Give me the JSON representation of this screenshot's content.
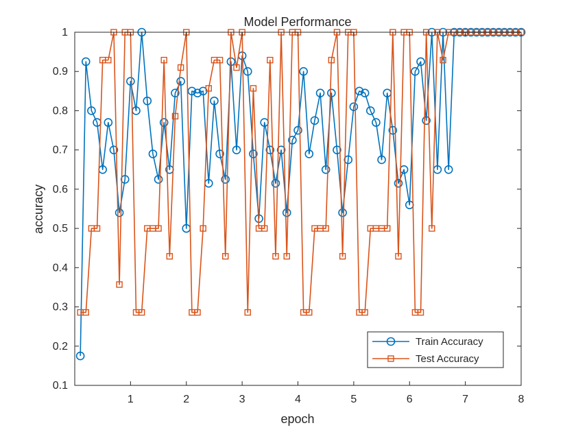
{
  "chart_data": {
    "type": "line",
    "title": "Model Performance",
    "xlabel": "epoch",
    "ylabel": "accuracy",
    "xlim": [
      0,
      8
    ],
    "ylim": [
      0.1,
      1
    ],
    "xticks": [
      1,
      2,
      3,
      4,
      5,
      6,
      7,
      8
    ],
    "yticks": [
      0.1,
      0.2,
      0.3,
      0.4,
      0.5,
      0.6,
      0.7,
      0.8,
      0.9,
      1
    ],
    "grid": false,
    "legend_position": "bottom-right",
    "series": [
      {
        "name": "Train Accuracy",
        "color": "#0072BD",
        "marker": "circle",
        "x": [
          0.1,
          0.2,
          0.3,
          0.4,
          0.5,
          0.6,
          0.7,
          0.8,
          0.9,
          1.0,
          1.1,
          1.2,
          1.3,
          1.4,
          1.5,
          1.6,
          1.7,
          1.8,
          1.9,
          2.0,
          2.1,
          2.2,
          2.3,
          2.4,
          2.5,
          2.6,
          2.7,
          2.8,
          2.9,
          3.0,
          3.1,
          3.2,
          3.3,
          3.4,
          3.5,
          3.6,
          3.7,
          3.8,
          3.9,
          4.0,
          4.1,
          4.2,
          4.3,
          4.4,
          4.5,
          4.6,
          4.7,
          4.8,
          4.9,
          5.0,
          5.1,
          5.2,
          5.3,
          5.4,
          5.5,
          5.6,
          5.7,
          5.8,
          5.9,
          6.0,
          6.1,
          6.2,
          6.3,
          6.4,
          6.5,
          6.6,
          6.7,
          6.8,
          6.9,
          7.0,
          7.1,
          7.2,
          7.3,
          7.4,
          7.5,
          7.6,
          7.7,
          7.8,
          7.9,
          8.0
        ],
        "y": [
          0.175,
          0.925,
          0.8,
          0.77,
          0.65,
          0.77,
          0.7,
          0.54,
          0.625,
          0.875,
          0.8,
          1.0,
          0.825,
          0.69,
          0.625,
          0.77,
          0.65,
          0.845,
          0.875,
          0.5,
          0.85,
          0.845,
          0.85,
          0.615,
          0.825,
          0.69,
          0.625,
          0.925,
          0.7,
          0.94,
          0.9,
          0.69,
          0.525,
          0.77,
          0.7,
          0.615,
          0.7,
          0.54,
          0.725,
          0.75,
          0.9,
          0.69,
          0.775,
          0.845,
          0.65,
          0.845,
          0.7,
          0.54,
          0.675,
          0.81,
          0.85,
          0.845,
          0.8,
          0.77,
          0.675,
          0.845,
          0.75,
          0.615,
          0.65,
          0.56,
          0.9,
          0.925,
          0.775,
          1.0,
          0.65,
          1.0,
          0.65,
          1.0,
          1.0,
          1.0,
          1.0,
          1.0,
          1.0,
          1.0,
          1.0,
          1.0,
          1.0,
          1.0,
          1.0,
          1.0
        ]
      },
      {
        "name": "Test Accuracy",
        "color": "#D95319",
        "marker": "square",
        "x": [
          0.1,
          0.2,
          0.3,
          0.4,
          0.5,
          0.6,
          0.7,
          0.8,
          0.9,
          1.0,
          1.1,
          1.2,
          1.3,
          1.4,
          1.5,
          1.6,
          1.7,
          1.8,
          1.9,
          2.0,
          2.1,
          2.2,
          2.3,
          2.4,
          2.5,
          2.6,
          2.7,
          2.8,
          2.9,
          3.0,
          3.1,
          3.2,
          3.3,
          3.4,
          3.5,
          3.6,
          3.7,
          3.8,
          3.9,
          4.0,
          4.1,
          4.2,
          4.3,
          4.4,
          4.5,
          4.6,
          4.7,
          4.8,
          4.9,
          5.0,
          5.1,
          5.2,
          5.3,
          5.4,
          5.5,
          5.6,
          5.7,
          5.8,
          5.9,
          6.0,
          6.1,
          6.2,
          6.3,
          6.4,
          6.5,
          6.6,
          6.7,
          6.8,
          6.9,
          7.0,
          7.1,
          7.2,
          7.3,
          7.4,
          7.5,
          7.6,
          7.7,
          7.8,
          7.9,
          8.0
        ],
        "y": [
          0.286,
          0.286,
          0.5,
          0.5,
          0.929,
          0.929,
          1.0,
          0.357,
          1.0,
          1.0,
          0.286,
          0.286,
          0.5,
          0.5,
          0.5,
          0.929,
          0.429,
          0.786,
          0.91,
          1.0,
          0.286,
          0.286,
          0.5,
          0.857,
          0.929,
          0.929,
          0.429,
          1.0,
          0.91,
          1.0,
          0.286,
          0.857,
          0.5,
          0.5,
          0.929,
          0.429,
          1.0,
          0.429,
          1.0,
          1.0,
          0.286,
          0.286,
          0.5,
          0.5,
          0.5,
          0.929,
          1.0,
          0.429,
          1.0,
          1.0,
          0.286,
          0.286,
          0.5,
          0.5,
          0.5,
          0.5,
          1.0,
          0.429,
          1.0,
          1.0,
          0.286,
          0.286,
          1.0,
          0.5,
          1.0,
          0.929,
          1.0,
          1.0,
          1.0,
          1.0,
          1.0,
          1.0,
          1.0,
          1.0,
          1.0,
          1.0,
          1.0,
          1.0,
          1.0,
          1.0
        ]
      }
    ]
  }
}
